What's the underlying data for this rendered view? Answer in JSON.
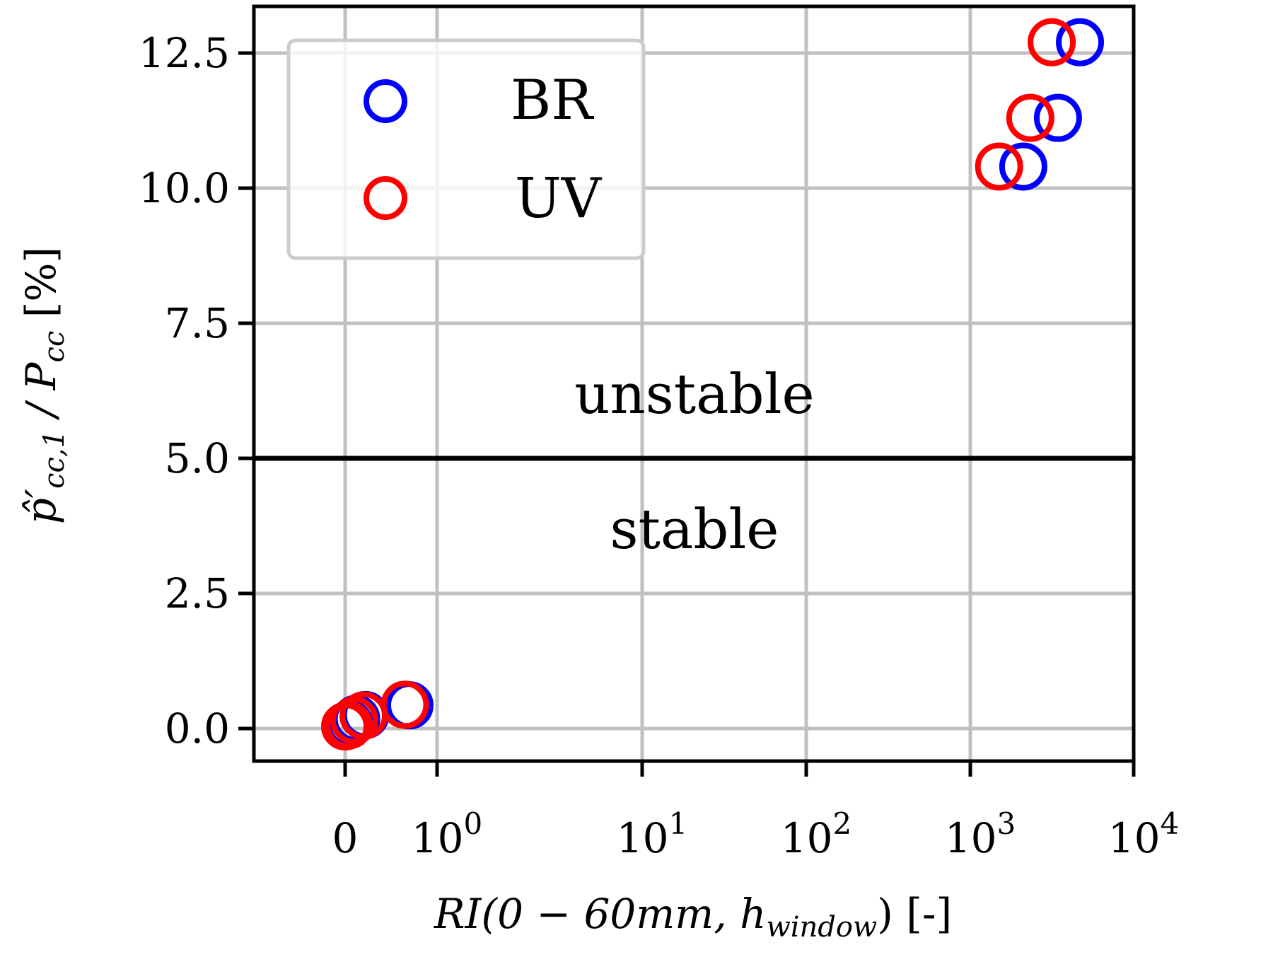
{
  "chart_data": {
    "type": "scatter",
    "title": "",
    "xlabel": "RI(0 − 60mm, h_window) [-]",
    "xlabel_parts": {
      "main": "RI(0 − 60mm, h",
      "sub": "window",
      "tail": ") [-]"
    },
    "ylabel": "p̂'cc,1 / Pcc [%]",
    "ylabel_parts": {
      "main": "p̂′",
      "sub": "cc,1",
      "tail": " / P",
      "sub2": "cc",
      "unit": " [%]"
    },
    "x_scale": "symlog",
    "xlim": [
      -0.55,
      10000
    ],
    "ylim": [
      -0.6,
      13.4
    ],
    "grid": true,
    "x_ticks": [
      {
        "value": 0,
        "label": "0"
      },
      {
        "value": 1,
        "label": "10",
        "exp": "0"
      },
      {
        "value": 10,
        "label": "10",
        "exp": "1"
      },
      {
        "value": 100,
        "label": "10",
        "exp": "2"
      },
      {
        "value": 1000,
        "label": "10",
        "exp": "3"
      },
      {
        "value": 10000,
        "label": "10",
        "exp": "4"
      }
    ],
    "y_ticks": [
      {
        "value": 0,
        "label": "0.0"
      },
      {
        "value": 2.5,
        "label": "2.5"
      },
      {
        "value": 5,
        "label": "5.0"
      },
      {
        "value": 7.5,
        "label": "7.5"
      },
      {
        "value": 10,
        "label": "10.0"
      },
      {
        "value": 12.5,
        "label": "12.5"
      }
    ],
    "threshold": {
      "y": 5.0
    },
    "annotations": [
      {
        "text": "unstable",
        "x": 40,
        "y": 6.1
      },
      {
        "text": "stable",
        "x": 40,
        "y": 3.6
      }
    ],
    "legend": {
      "placement": "top-left"
    },
    "series": [
      {
        "name": "BR",
        "color": "#0000ff",
        "points": [
          [
            0.01,
            0.05
          ],
          [
            0.05,
            0.08
          ],
          [
            0.12,
            0.18
          ],
          [
            0.22,
            0.25
          ],
          [
            0.7,
            0.43
          ],
          [
            2110,
            10.4
          ],
          [
            3440,
            11.3
          ],
          [
            4690,
            12.7
          ]
        ]
      },
      {
        "name": "UV",
        "color": "#ff0000",
        "points": [
          [
            0.0,
            0.04
          ],
          [
            0.04,
            0.06
          ],
          [
            0.1,
            0.15
          ],
          [
            0.2,
            0.24
          ],
          [
            0.65,
            0.44
          ],
          [
            1500,
            10.4
          ],
          [
            2330,
            11.3
          ],
          [
            3150,
            12.7
          ]
        ]
      }
    ]
  }
}
